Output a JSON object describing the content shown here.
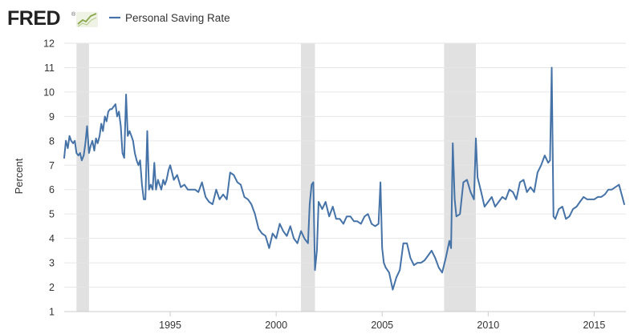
{
  "brand": {
    "logo_text": "FRED",
    "logo_mark": "®"
  },
  "colors": {
    "series": "#4572a7",
    "recession": "#e1e1e1",
    "grid": "#e6e6e6",
    "axis_text": "#333333"
  },
  "chart_data": {
    "type": "line",
    "title": "Personal Saving Rate",
    "legend": [
      "Personal Saving Rate"
    ],
    "legend_position": "top-left",
    "xlabel": "",
    "ylabel": "Percent",
    "ylim": [
      1,
      12
    ],
    "yticks": [
      1,
      2,
      3,
      4,
      5,
      6,
      7,
      8,
      9,
      10,
      11,
      12
    ],
    "xlim": [
      1990.0,
      2016.5
    ],
    "xticks": [
      {
        "value": 1995,
        "label": "1995"
      },
      {
        "value": 2000,
        "label": "2000"
      },
      {
        "value": 2005,
        "label": "2005"
      },
      {
        "value": 2010,
        "label": "2010"
      },
      {
        "value": 2015,
        "label": "2015"
      }
    ],
    "grid": true,
    "recessions": [
      {
        "start": 1990.58,
        "end": 1991.17
      },
      {
        "start": 2001.17,
        "end": 2001.83
      },
      {
        "start": 2007.92,
        "end": 2009.42
      }
    ],
    "series": [
      {
        "name": "Personal Saving Rate",
        "x": [
          1990.0,
          1990.08,
          1990.17,
          1990.25,
          1990.33,
          1990.42,
          1990.5,
          1990.58,
          1990.67,
          1990.75,
          1990.83,
          1990.92,
          1991.0,
          1991.08,
          1991.17,
          1991.25,
          1991.33,
          1991.42,
          1991.5,
          1991.58,
          1991.67,
          1991.75,
          1991.83,
          1991.92,
          1992.0,
          1992.08,
          1992.17,
          1992.25,
          1992.33,
          1992.42,
          1992.5,
          1992.58,
          1992.67,
          1992.75,
          1992.83,
          1992.92,
          1993.0,
          1993.08,
          1993.17,
          1993.25,
          1993.33,
          1993.42,
          1993.5,
          1993.58,
          1993.67,
          1993.75,
          1993.83,
          1993.92,
          1994.0,
          1994.08,
          1994.17,
          1994.25,
          1994.33,
          1994.42,
          1994.5,
          1994.58,
          1994.67,
          1994.75,
          1994.83,
          1994.92,
          1995.0,
          1995.17,
          1995.33,
          1995.5,
          1995.67,
          1995.83,
          1996.0,
          1996.17,
          1996.33,
          1996.5,
          1996.67,
          1996.83,
          1997.0,
          1997.17,
          1997.33,
          1997.5,
          1997.67,
          1997.83,
          1998.0,
          1998.17,
          1998.33,
          1998.5,
          1998.67,
          1998.83,
          1999.0,
          1999.17,
          1999.33,
          1999.5,
          1999.67,
          1999.83,
          2000.0,
          2000.17,
          2000.33,
          2000.5,
          2000.67,
          2000.83,
          2001.0,
          2001.17,
          2001.33,
          2001.5,
          2001.58,
          2001.67,
          2001.75,
          2001.83,
          2001.92,
          2002.0,
          2002.17,
          2002.33,
          2002.5,
          2002.67,
          2002.83,
          2003.0,
          2003.17,
          2003.33,
          2003.5,
          2003.67,
          2003.83,
          2004.0,
          2004.17,
          2004.33,
          2004.5,
          2004.67,
          2004.83,
          2004.92,
          2005.0,
          2005.08,
          2005.17,
          2005.33,
          2005.5,
          2005.67,
          2005.83,
          2006.0,
          2006.17,
          2006.33,
          2006.5,
          2006.67,
          2006.83,
          2007.0,
          2007.17,
          2007.33,
          2007.5,
          2007.67,
          2007.83,
          2008.0,
          2008.17,
          2008.25,
          2008.33,
          2008.42,
          2008.5,
          2008.67,
          2008.83,
          2009.0,
          2009.17,
          2009.33,
          2009.42,
          2009.5,
          2009.67,
          2009.83,
          2010.0,
          2010.17,
          2010.33,
          2010.5,
          2010.67,
          2010.83,
          2011.0,
          2011.17,
          2011.33,
          2011.5,
          2011.67,
          2011.83,
          2012.0,
          2012.17,
          2012.33,
          2012.5,
          2012.67,
          2012.83,
          2012.92,
          2013.0,
          2013.08,
          2013.17,
          2013.33,
          2013.5,
          2013.67,
          2013.83,
          2014.0,
          2014.17,
          2014.33,
          2014.5,
          2014.67,
          2014.83,
          2015.0,
          2015.17,
          2015.33,
          2015.5,
          2015.67,
          2015.83,
          2016.0,
          2016.17,
          2016.33,
          2016.42
        ],
        "values": [
          7.3,
          8.0,
          7.7,
          8.2,
          8.0,
          7.9,
          8.0,
          7.5,
          7.4,
          7.5,
          7.2,
          7.4,
          7.9,
          8.6,
          7.5,
          7.8,
          8.0,
          7.6,
          8.1,
          7.9,
          8.2,
          8.7,
          8.4,
          9.0,
          8.8,
          9.2,
          9.3,
          9.3,
          9.4,
          9.5,
          9.0,
          9.2,
          8.6,
          7.5,
          7.3,
          9.9,
          8.2,
          8.4,
          8.2,
          8.0,
          7.5,
          7.2,
          7.0,
          7.2,
          6.2,
          5.6,
          5.6,
          8.4,
          6.0,
          6.2,
          6.0,
          7.1,
          6.0,
          6.4,
          6.2,
          6.0,
          6.4,
          6.2,
          6.4,
          6.8,
          7.0,
          6.4,
          6.6,
          6.1,
          6.2,
          6.0,
          6.0,
          6.0,
          5.9,
          6.3,
          5.7,
          5.5,
          5.4,
          6.0,
          5.6,
          5.8,
          5.6,
          6.7,
          6.6,
          6.3,
          6.2,
          5.7,
          5.6,
          5.4,
          5.0,
          4.4,
          4.2,
          4.1,
          3.6,
          4.2,
          4.0,
          4.6,
          4.3,
          4.1,
          4.5,
          4.0,
          3.8,
          4.3,
          4.0,
          3.8,
          5.4,
          6.2,
          6.3,
          2.7,
          3.5,
          5.5,
          5.2,
          5.5,
          4.9,
          5.3,
          4.8,
          4.8,
          4.6,
          4.9,
          4.9,
          4.7,
          4.7,
          4.6,
          4.9,
          5.0,
          4.6,
          4.5,
          4.6,
          6.3,
          3.6,
          3.0,
          2.8,
          2.6,
          1.9,
          2.4,
          2.7,
          3.8,
          3.8,
          3.2,
          2.9,
          3.0,
          3.0,
          3.1,
          3.3,
          3.5,
          3.2,
          2.8,
          2.6,
          3.2,
          3.9,
          3.6,
          7.9,
          5.6,
          4.9,
          5.0,
          6.3,
          6.4,
          5.9,
          5.6,
          8.1,
          6.5,
          5.9,
          5.3,
          5.5,
          5.7,
          5.3,
          5.5,
          5.7,
          5.6,
          6.0,
          5.9,
          5.6,
          6.3,
          6.4,
          5.9,
          6.1,
          5.9,
          6.7,
          7.0,
          7.4,
          7.1,
          7.2,
          11.0,
          4.9,
          4.8,
          5.2,
          5.3,
          4.8,
          4.9,
          5.2,
          5.3,
          5.5,
          5.7,
          5.6,
          5.6,
          5.6,
          5.7,
          5.7,
          5.8,
          6.0,
          6.0,
          6.1,
          6.2,
          5.7,
          5.4
        ]
      }
    ]
  }
}
